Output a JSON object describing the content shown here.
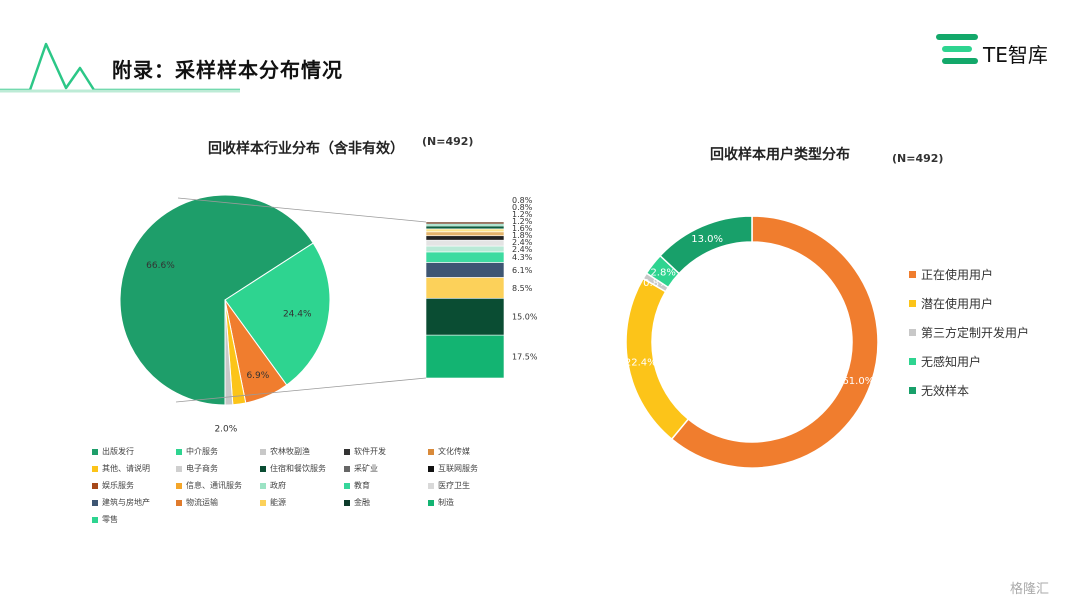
{
  "page": {
    "title": "附录：采样样本分布情况",
    "logo_text": "TE智库",
    "watermark": "格隆汇",
    "accent_color": "#13a86a"
  },
  "charts": {
    "left": {
      "title": "回收样本行业分布（含非有效）",
      "n_label": "(N=492)"
    },
    "right": {
      "title": "回收样本用户类型分布",
      "n_label": "(N=492)"
    }
  },
  "chart_data": [
    {
      "type": "pie",
      "title": "回收样本行业分布（含非有效）",
      "n": "(N=492)",
      "slices": [
        {
          "name": "出版发行",
          "value": 66.6,
          "label": "66.6%",
          "color": "#1e9e6a"
        },
        {
          "name": "中介服务",
          "value": 24.4,
          "label": "24.4%",
          "color": "#2ed490"
        },
        {
          "name": "农林牧副渔",
          "value": 6.9,
          "label": "6.9%",
          "color": "#f07d2e"
        },
        {
          "name": "其他、请说明",
          "value": 2.0,
          "label": "2.0%",
          "color": "#fcc419"
        },
        {
          "name": "电子商务",
          "value": 1.2,
          "label": "1.2%",
          "color": "#c8c8c8"
        }
      ],
      "breakdown": [
        {
          "value": 17.5,
          "label": "17.5%",
          "color": "#13b472"
        },
        {
          "value": 15.0,
          "label": "15.0%",
          "color": "#0a4d33"
        },
        {
          "value": 8.5,
          "label": "8.5%",
          "color": "#fcd15a"
        },
        {
          "value": 6.1,
          "label": "6.1%",
          "color": "#3e5673"
        },
        {
          "value": 4.3,
          "label": "4.3%",
          "color": "#3ddba0"
        },
        {
          "value": 2.4,
          "label": "2.4%",
          "color": "#b9e9d6"
        },
        {
          "value": 2.4,
          "label": "2.4%",
          "color": "#e4e4e4"
        },
        {
          "value": 1.8,
          "label": "1.8%",
          "color": "#222222"
        },
        {
          "value": 1.6,
          "label": "1.6%",
          "color": "#e3b36a"
        },
        {
          "value": 1.2,
          "label": "1.2%",
          "color": "#fbe58c"
        },
        {
          "value": 1.2,
          "label": "1.2%",
          "color": "#0d5d3e"
        },
        {
          "value": 0.8,
          "label": "0.8%",
          "color": "#7fd3b2"
        },
        {
          "value": 0.8,
          "label": "0.8%",
          "color": "#6b3a1e"
        }
      ],
      "legend": [
        {
          "name": "出版发行",
          "color": "#1e9e6a"
        },
        {
          "name": "中介服务",
          "color": "#2ed490"
        },
        {
          "name": "农林牧副渔",
          "color": "#c8c8c8"
        },
        {
          "name": "软件开发",
          "color": "#333333"
        },
        {
          "name": "文化传媒",
          "color": "#d98a3a"
        },
        {
          "name": "其他、请说明",
          "color": "#fcc419"
        },
        {
          "name": "电子商务",
          "color": "#cfcfcf"
        },
        {
          "name": "住宿和餐饮服务",
          "color": "#0a4d33"
        },
        {
          "name": "采矿业",
          "color": "#666666"
        },
        {
          "name": "互联网服务",
          "color": "#111111"
        },
        {
          "name": "娱乐服务",
          "color": "#a6481a"
        },
        {
          "name": "信息、通讯服务",
          "color": "#f4a62a"
        },
        {
          "name": "政府",
          "color": "#9be3c4"
        },
        {
          "name": "教育",
          "color": "#36d69b"
        },
        {
          "name": "医疗卫生",
          "color": "#d9d9d9"
        },
        {
          "name": "建筑与房地产",
          "color": "#3e5673"
        },
        {
          "name": "物流运输",
          "color": "#e07b2c"
        },
        {
          "name": "能源",
          "color": "#fcd15a"
        },
        {
          "name": "金融",
          "color": "#0d3b2a"
        },
        {
          "name": "制造",
          "color": "#13b472"
        },
        {
          "name": "零售",
          "color": "#2ed490"
        }
      ]
    },
    {
      "type": "pie",
      "subtype": "donut",
      "title": "回收样本用户类型分布",
      "n": "(N=492)",
      "slices": [
        {
          "name": "正在使用用户",
          "value": 61.0,
          "label": "61.0%",
          "color": "#f07d2e"
        },
        {
          "name": "潜在使用用户",
          "value": 22.4,
          "label": "22.4%",
          "color": "#fcc419"
        },
        {
          "name": "第三方定制开发用户",
          "value": 0.8,
          "label": "0.8%",
          "color": "#c8c8c8"
        },
        {
          "name": "无感知用户",
          "value": 2.8,
          "label": "2.8%",
          "color": "#2ed490"
        },
        {
          "name": "无效样本",
          "value": 13.0,
          "label": "13.0%",
          "color": "#18a06a"
        }
      ]
    }
  ]
}
